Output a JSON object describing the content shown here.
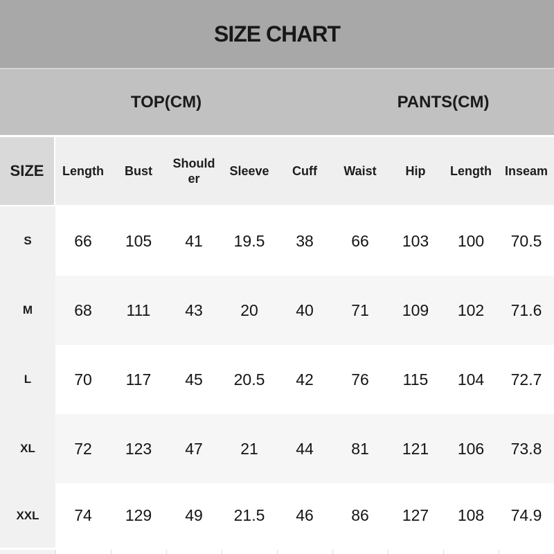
{
  "title": "SIZE CHART",
  "groups": {
    "top": "TOP(CM)",
    "pants": "PANTS(CM)"
  },
  "colors": {
    "title_band": "#a8a8a8",
    "group_band": "#c1c1c1",
    "header_row": "#efefef",
    "size_header_cell": "#d9d9d9",
    "size_column": "#f1f1f1",
    "zebra_row": "#f6f6f6",
    "text": "#1a1a1a"
  },
  "chart_data": {
    "type": "table",
    "title": "SIZE CHART",
    "unit": "cm",
    "group_headers": [
      {
        "label": "TOP(CM)",
        "columns": [
          "Length",
          "Bust",
          "Shoulder",
          "Sleeve",
          "Cuff"
        ]
      },
      {
        "label": "PANTS(CM)",
        "columns": [
          "Waist",
          "Hip",
          "Length",
          "Inseam"
        ]
      }
    ],
    "columns": [
      "SIZE",
      "Length",
      "Bust",
      "Shoulder",
      "Sleeve",
      "Cuff",
      "Waist",
      "Hip",
      "Length",
      "Inseam"
    ],
    "rows": [
      {
        "size": "S",
        "values": [
          66,
          105,
          41,
          19.5,
          38,
          66,
          103,
          100,
          70.5
        ]
      },
      {
        "size": "M",
        "values": [
          68,
          111,
          43,
          20,
          40,
          71,
          109,
          102,
          71.6
        ]
      },
      {
        "size": "L",
        "values": [
          70,
          117,
          45,
          20.5,
          42,
          76,
          115,
          104,
          72.7
        ]
      },
      {
        "size": "XL",
        "values": [
          72,
          123,
          47,
          21,
          44,
          81,
          121,
          106,
          73.8
        ]
      },
      {
        "size": "XXL",
        "values": [
          74,
          129,
          49,
          21.5,
          46,
          86,
          127,
          108,
          74.9
        ]
      }
    ]
  }
}
